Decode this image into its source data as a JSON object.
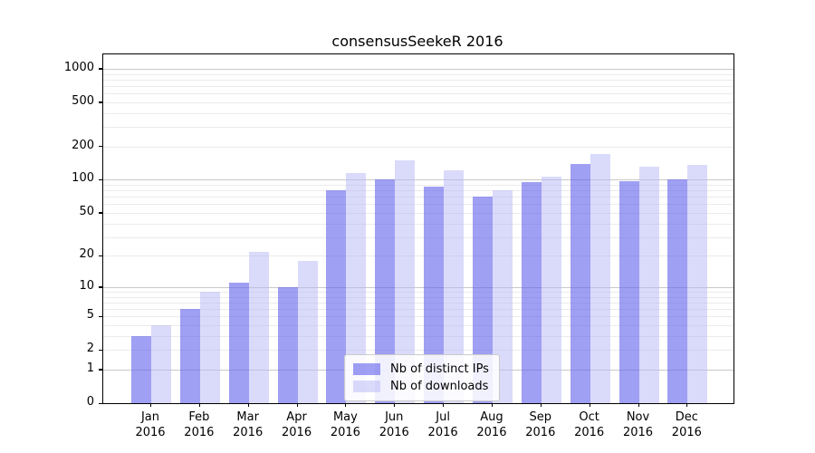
{
  "chart_data": {
    "type": "bar",
    "title": "consensusSeekeR 2016",
    "categories": [
      "Jan",
      "Feb",
      "Mar",
      "Apr",
      "May",
      "Jun",
      "Jul",
      "Aug",
      "Sep",
      "Oct",
      "Nov",
      "Dec"
    ],
    "category_year": "2016",
    "series": [
      {
        "name": "Nb of distinct IPs",
        "values": [
          3,
          6,
          11,
          10,
          80,
          100,
          86,
          70,
          95,
          138,
          97,
          100
        ],
        "color": "rgba(100,100,235,0.62)"
      },
      {
        "name": "Nb of downloads",
        "values": [
          4,
          9,
          22,
          18,
          116,
          150,
          122,
          81,
          107,
          171,
          132,
          137
        ],
        "color": "rgba(185,185,245,0.52)"
      }
    ],
    "xlabel": "",
    "ylabel": "",
    "yscale": "log10(value+1)",
    "ylim": [
      0,
      1360
    ],
    "ytick_values": [
      1000,
      500,
      200,
      100,
      50,
      20,
      10,
      5,
      2,
      1,
      0
    ],
    "major_gridline_values": [
      1,
      10,
      100,
      1000
    ],
    "minor_gridline_values": [
      2,
      3,
      4,
      5,
      6,
      7,
      8,
      9,
      20,
      30,
      40,
      50,
      60,
      70,
      80,
      90,
      200,
      300,
      400,
      500,
      600,
      700,
      800,
      900
    ],
    "grid": "on",
    "legend_position": "lower center"
  },
  "colors": {
    "background": "#ffffff",
    "bar_distinct_ips": "rgba(100,100,235,0.62)",
    "bar_downloads": "rgba(185,185,245,0.52)",
    "grid_major": "#c9c9c9",
    "grid_minor": "#ebebeb",
    "spine": "#000000",
    "text": "#000000",
    "legend_border": "#cccccc",
    "legend_background": "rgba(255,255,255,0.85)"
  }
}
